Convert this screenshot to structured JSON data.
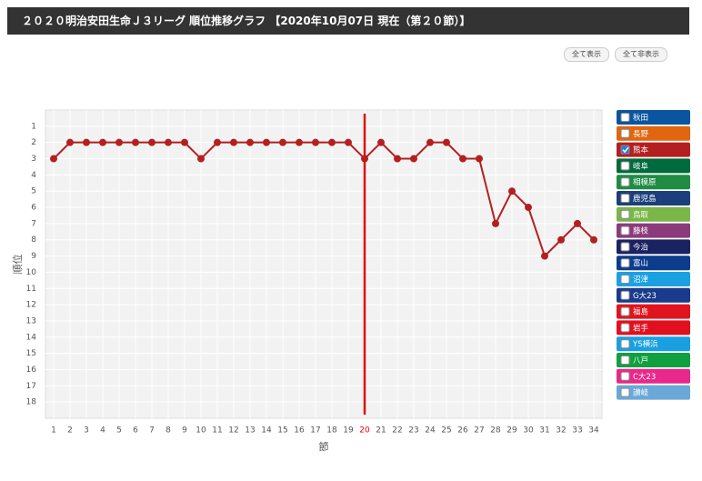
{
  "header": {
    "title": "２０２０明治安田生命Ｊ３リーグ 順位推移グラフ 【2020年10月07日 現在（第２０節）】"
  },
  "buttons": {
    "show_all": "全て表示",
    "hide_all": "全て非表示"
  },
  "chart_data": {
    "type": "line",
    "y_label": "順位",
    "x_label": "節",
    "categories": [
      "1",
      "2",
      "3",
      "4",
      "5",
      "6",
      "7",
      "8",
      "9",
      "10",
      "11",
      "12",
      "13",
      "14",
      "15",
      "16",
      "17",
      "18",
      "19",
      "20",
      "21",
      "22",
      "23",
      "24",
      "25",
      "26",
      "27",
      "28",
      "29",
      "30",
      "31",
      "32",
      "33",
      "34"
    ],
    "current_round": "20",
    "ylim": [
      0,
      19
    ],
    "y_reversed": true,
    "yticks": [
      1,
      2,
      3,
      4,
      5,
      6,
      7,
      8,
      9,
      10,
      11,
      12,
      13,
      14,
      15,
      16,
      17,
      18
    ],
    "grid": true,
    "series": [
      {
        "name": "秋田",
        "color": "#0a55a0",
        "checked": false
      },
      {
        "name": "長野",
        "color": "#e2650f",
        "checked": false
      },
      {
        "name": "熊本",
        "color": "#b41f1f",
        "checked": true,
        "values": [
          3,
          2,
          2,
          2,
          2,
          2,
          2,
          2,
          2,
          3,
          2,
          2,
          2,
          2,
          2,
          2,
          2,
          2,
          2,
          3,
          2,
          3,
          3,
          2,
          2,
          3,
          3,
          7,
          5,
          6,
          9,
          8,
          7,
          8
        ]
      },
      {
        "name": "岐阜",
        "color": "#006b3c",
        "checked": false
      },
      {
        "name": "相模原",
        "color": "#1f8b43",
        "checked": false
      },
      {
        "name": "鹿児島",
        "color": "#1c3f7c",
        "checked": false
      },
      {
        "name": "鳥取",
        "color": "#7ab648",
        "checked": false
      },
      {
        "name": "藤枝",
        "color": "#8b3b7c",
        "checked": false
      },
      {
        "name": "今治",
        "color": "#1b2262",
        "checked": false
      },
      {
        "name": "富山",
        "color": "#0c3c8c",
        "checked": false
      },
      {
        "name": "沼津",
        "color": "#1ba0e2",
        "checked": false
      },
      {
        "name": "G大23",
        "color": "#1a3a8c",
        "checked": false
      },
      {
        "name": "福島",
        "color": "#e0141e",
        "checked": false
      },
      {
        "name": "岩手",
        "color": "#e01020",
        "checked": false
      },
      {
        "name": "YS横浜",
        "color": "#1aa0e0",
        "checked": false
      },
      {
        "name": "八戸",
        "color": "#0fa040",
        "checked": false
      },
      {
        "name": "C大23",
        "color": "#e8288a",
        "checked": false
      },
      {
        "name": "讃岐",
        "color": "#6aa8d8",
        "checked": false
      }
    ]
  }
}
